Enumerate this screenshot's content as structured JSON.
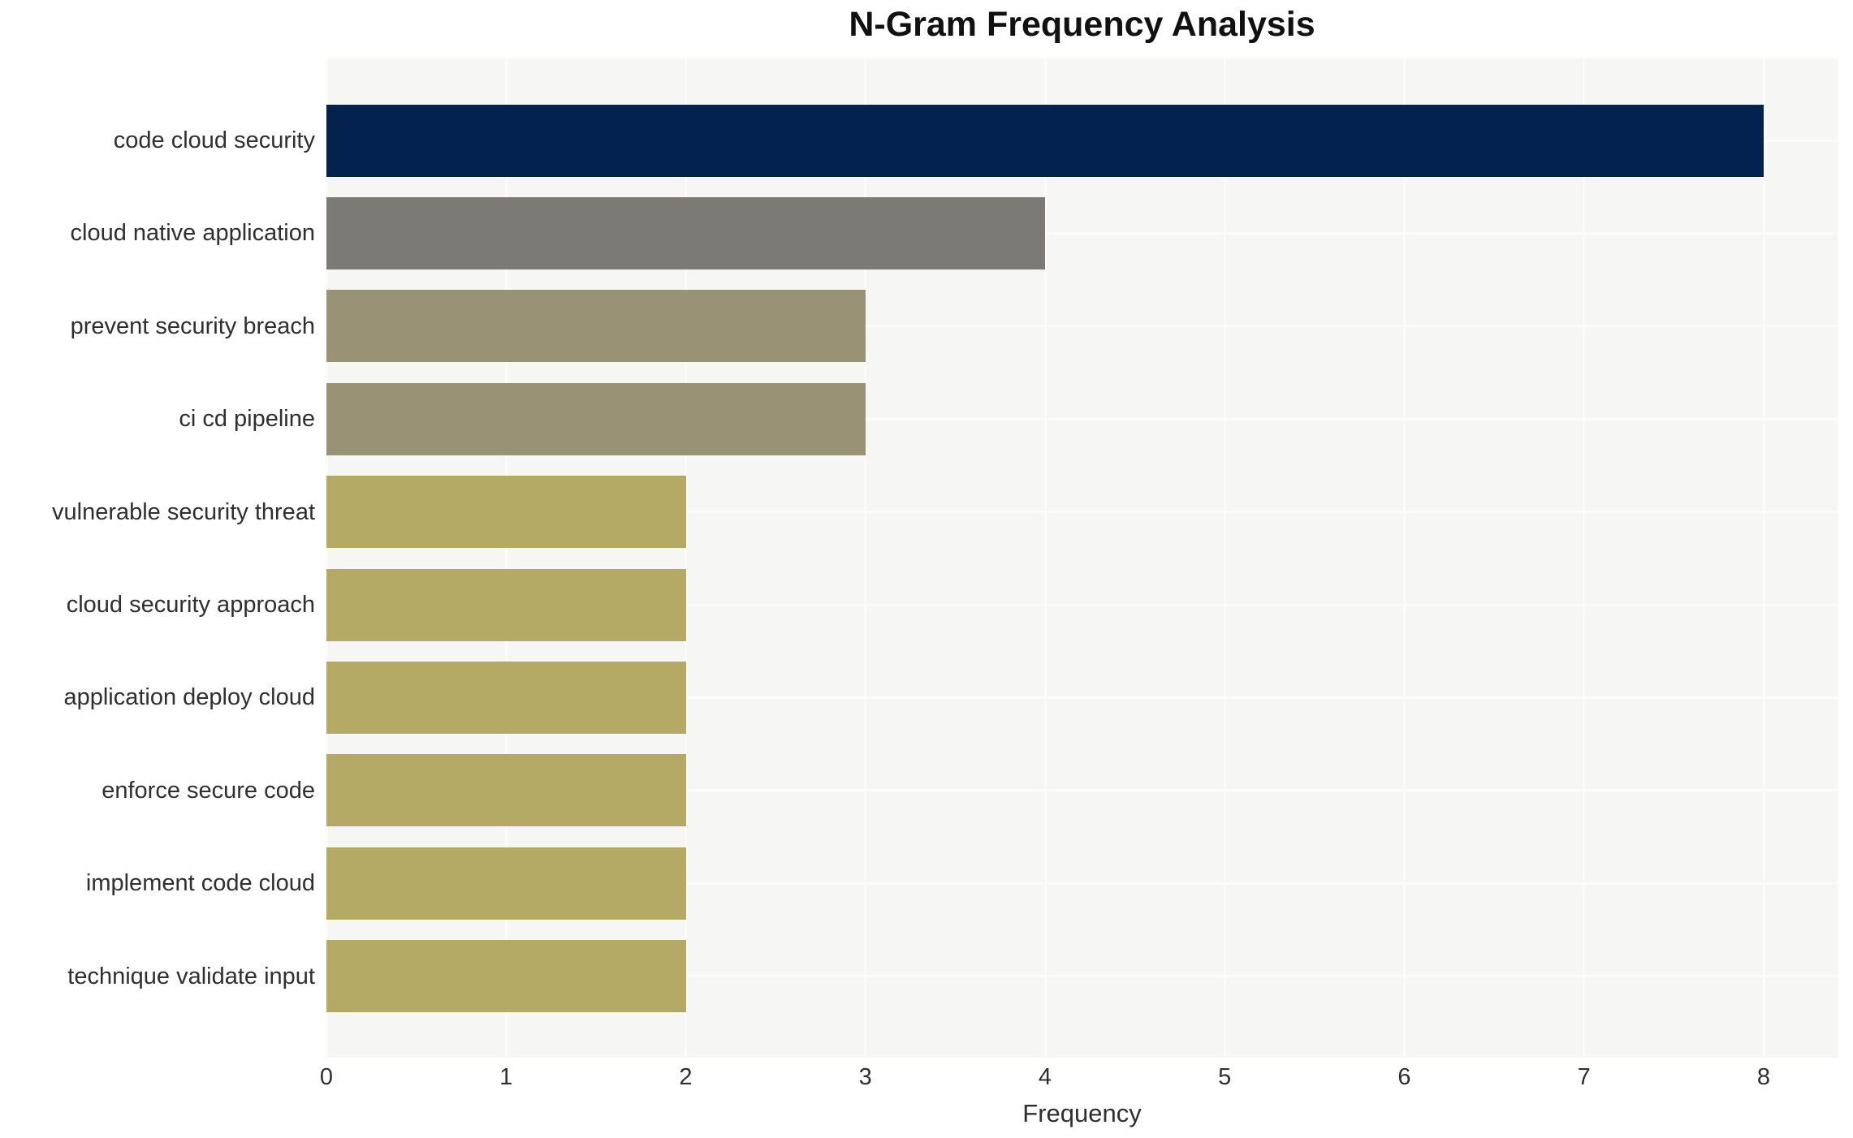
{
  "chart_data": {
    "type": "bar",
    "orientation": "horizontal",
    "title": "N-Gram Frequency Analysis",
    "xlabel": "Frequency",
    "categories": [
      "code cloud security",
      "cloud native application",
      "prevent security breach",
      "ci cd pipeline",
      "vulnerable security threat",
      "cloud security approach",
      "application deploy cloud",
      "enforce secure code",
      "implement code cloud",
      "technique validate input"
    ],
    "values": [
      8,
      4,
      3,
      3,
      2,
      2,
      2,
      2,
      2,
      2
    ],
    "bar_colors": [
      "#03234e",
      "#7b7a76",
      "#9a9274",
      "#9a9274",
      "#b5a966",
      "#b5a966",
      "#b5a966",
      "#b5a966",
      "#b5a966",
      "#b5a966"
    ],
    "x_ticks": [
      0,
      1,
      2,
      3,
      4,
      5,
      6,
      7,
      8
    ],
    "xlim": [
      0,
      8.41
    ],
    "grid": true,
    "legend": false,
    "panel_background": "#f6f6f4",
    "gridline_color": "#fbfbfa",
    "text_color": "#2f2f2f",
    "title_color": "#111111"
  }
}
